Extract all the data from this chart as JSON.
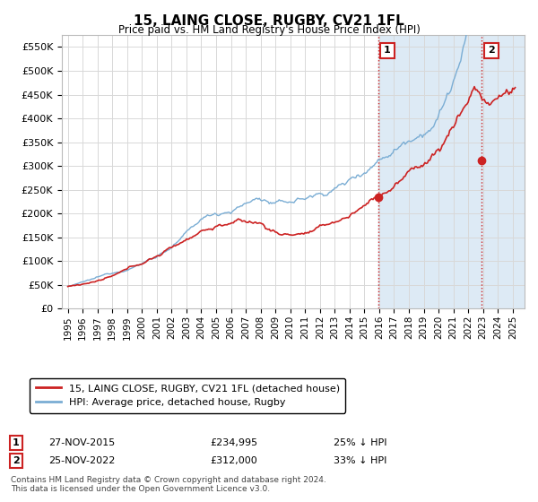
{
  "title": "15, LAING CLOSE, RUGBY, CV21 1FL",
  "subtitle": "Price paid vs. HM Land Registry's House Price Index (HPI)",
  "ylim": [
    0,
    575000
  ],
  "yticks": [
    0,
    50000,
    100000,
    150000,
    200000,
    250000,
    300000,
    350000,
    400000,
    450000,
    500000,
    550000
  ],
  "hpi_color": "#7aadd4",
  "price_color": "#cc2222",
  "vline_color": "#cc2222",
  "marker1_price": 234995,
  "marker2_price": 312000,
  "sale1_date": "27-NOV-2015",
  "sale2_date": "25-NOV-2022",
  "sale1_year": 2015.9,
  "sale2_year": 2022.9,
  "sale1_pct": "25% ↓ HPI",
  "sale2_pct": "33% ↓ HPI",
  "legend_price_label": "15, LAING CLOSE, RUGBY, CV21 1FL (detached house)",
  "legend_hpi_label": "HPI: Average price, detached house, Rugby",
  "footnote": "Contains HM Land Registry data © Crown copyright and database right 2024.\nThis data is licensed under the Open Government Licence v3.0.",
  "bg_color": "#ffffff",
  "grid_color": "#d8d8d8",
  "shaded_color": "#ddeaf5"
}
